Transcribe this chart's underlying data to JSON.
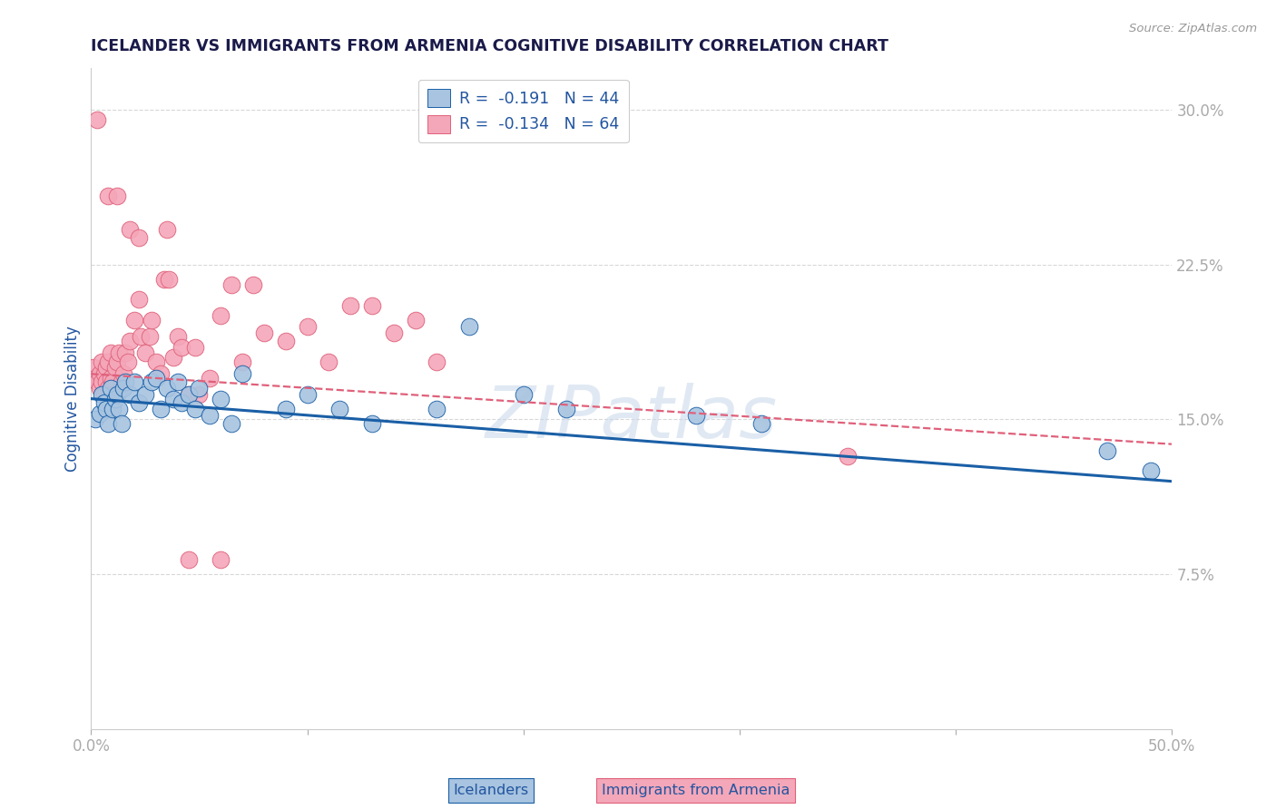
{
  "title": "ICELANDER VS IMMIGRANTS FROM ARMENIA COGNITIVE DISABILITY CORRELATION CHART",
  "source": "Source: ZipAtlas.com",
  "xlabel_label": "Icelanders",
  "xlabel_label2": "Immigrants from Armenia",
  "ylabel": "Cognitive Disability",
  "xlim": [
    0.0,
    0.5
  ],
  "ylim": [
    0.0,
    0.32
  ],
  "yticks": [
    0.075,
    0.15,
    0.225,
    0.3
  ],
  "ytick_labels": [
    "7.5%",
    "15.0%",
    "22.5%",
    "30.0%"
  ],
  "xticks": [
    0.0,
    0.1,
    0.2,
    0.3,
    0.4,
    0.5
  ],
  "xtick_labels": [
    "0.0%",
    "",
    "",
    "",
    "",
    "50.0%"
  ],
  "blue_R": -0.191,
  "blue_N": 44,
  "pink_R": -0.134,
  "pink_N": 64,
  "blue_color": "#a8c4e0",
  "pink_color": "#f4a7b9",
  "blue_line_color": "#1a5fa6",
  "pink_line_color": "#e0607a",
  "legend_text_color": "#2255a0",
  "watermark_color": "#c8d8ea",
  "blue_scatter_x": [
    0.002,
    0.004,
    0.005,
    0.006,
    0.007,
    0.008,
    0.009,
    0.01,
    0.011,
    0.012,
    0.013,
    0.014,
    0.015,
    0.016,
    0.018,
    0.02,
    0.022,
    0.025,
    0.028,
    0.03,
    0.032,
    0.035,
    0.038,
    0.04,
    0.042,
    0.045,
    0.048,
    0.05,
    0.055,
    0.06,
    0.065,
    0.07,
    0.09,
    0.1,
    0.115,
    0.13,
    0.16,
    0.175,
    0.2,
    0.22,
    0.28,
    0.31,
    0.47,
    0.49
  ],
  "blue_scatter_y": [
    0.15,
    0.153,
    0.162,
    0.158,
    0.155,
    0.148,
    0.165,
    0.155,
    0.16,
    0.162,
    0.155,
    0.148,
    0.165,
    0.168,
    0.162,
    0.168,
    0.158,
    0.162,
    0.168,
    0.17,
    0.155,
    0.165,
    0.16,
    0.168,
    0.158,
    0.162,
    0.155,
    0.165,
    0.152,
    0.16,
    0.148,
    0.172,
    0.155,
    0.162,
    0.155,
    0.148,
    0.155,
    0.195,
    0.162,
    0.155,
    0.152,
    0.148,
    0.135,
    0.125
  ],
  "pink_scatter_x": [
    0.001,
    0.002,
    0.003,
    0.004,
    0.004,
    0.005,
    0.005,
    0.006,
    0.006,
    0.007,
    0.007,
    0.008,
    0.008,
    0.009,
    0.009,
    0.01,
    0.01,
    0.011,
    0.012,
    0.013,
    0.014,
    0.015,
    0.016,
    0.017,
    0.018,
    0.02,
    0.022,
    0.023,
    0.025,
    0.027,
    0.028,
    0.03,
    0.032,
    0.034,
    0.036,
    0.038,
    0.04,
    0.042,
    0.045,
    0.048,
    0.05,
    0.055,
    0.06,
    0.065,
    0.07,
    0.075,
    0.08,
    0.09,
    0.1,
    0.11,
    0.12,
    0.13,
    0.14,
    0.15,
    0.16,
    0.003,
    0.008,
    0.012,
    0.018,
    0.022,
    0.035,
    0.045,
    0.06,
    0.35
  ],
  "pink_scatter_y": [
    0.175,
    0.17,
    0.168,
    0.172,
    0.165,
    0.168,
    0.178,
    0.172,
    0.162,
    0.168,
    0.175,
    0.178,
    0.165,
    0.17,
    0.182,
    0.168,
    0.162,
    0.175,
    0.178,
    0.182,
    0.168,
    0.172,
    0.182,
    0.178,
    0.188,
    0.198,
    0.208,
    0.19,
    0.182,
    0.19,
    0.198,
    0.178,
    0.172,
    0.218,
    0.218,
    0.18,
    0.19,
    0.185,
    0.162,
    0.185,
    0.162,
    0.17,
    0.2,
    0.215,
    0.178,
    0.215,
    0.192,
    0.188,
    0.195,
    0.178,
    0.205,
    0.205,
    0.192,
    0.198,
    0.178,
    0.295,
    0.258,
    0.258,
    0.242,
    0.238,
    0.242,
    0.082,
    0.082,
    0.132
  ],
  "blue_line_x": [
    0.0,
    0.5
  ],
  "blue_line_y": [
    0.16,
    0.12
  ],
  "pink_line_x": [
    0.0,
    0.5
  ],
  "pink_line_y": [
    0.172,
    0.138
  ]
}
